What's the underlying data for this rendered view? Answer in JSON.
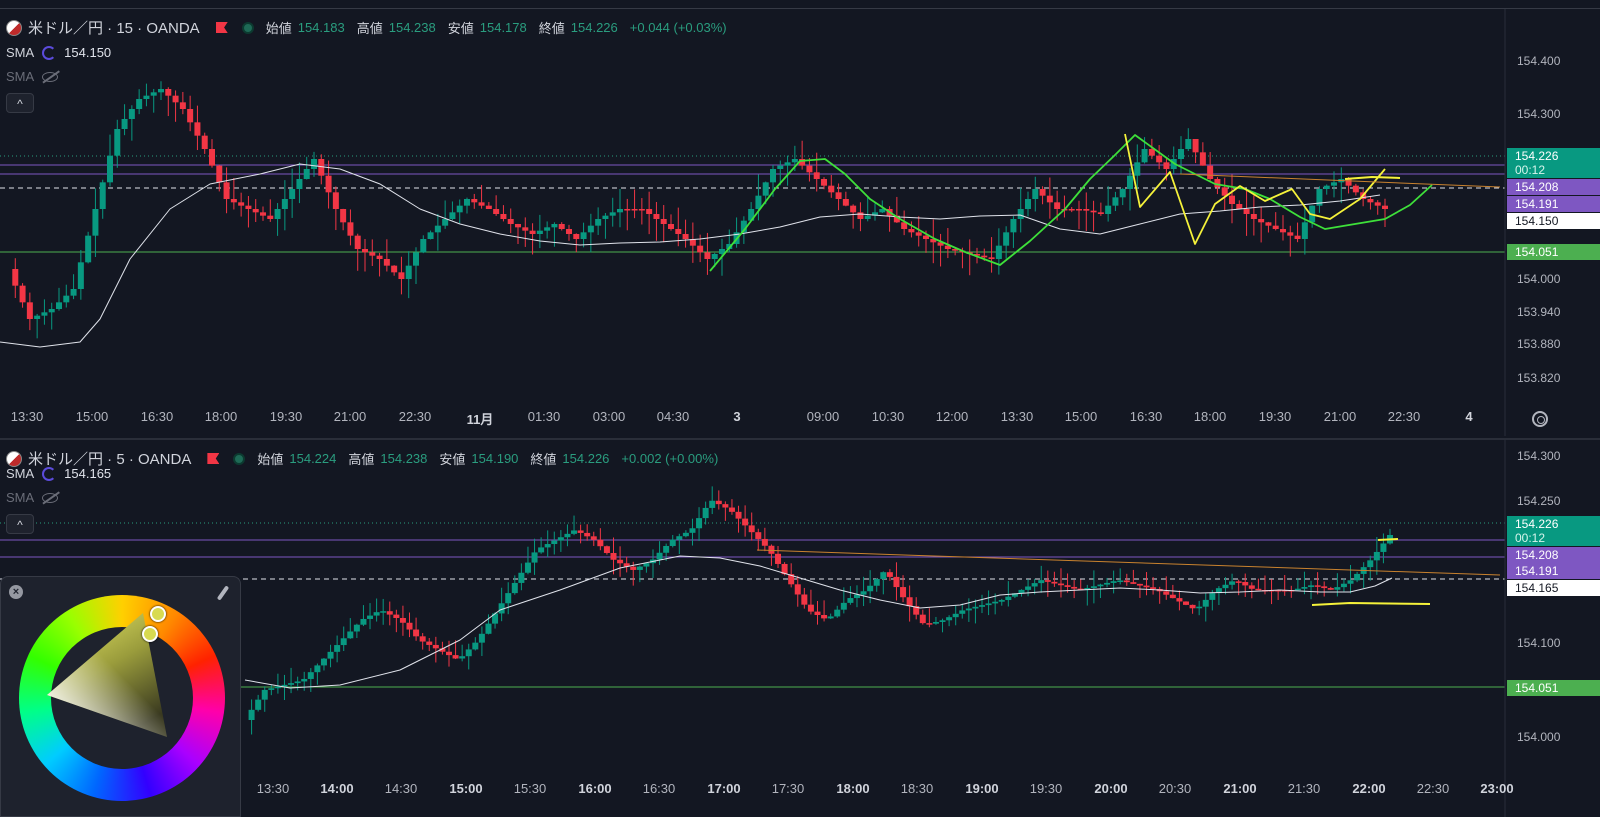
{
  "top_panel": {
    "symbol": "米ドル／円 · 15 · OANDA",
    "ohlc": {
      "open_label": "始値",
      "open": "154.183",
      "high_label": "高値",
      "high": "154.238",
      "low_label": "安値",
      "low": "154.178",
      "close_label": "終値",
      "close": "154.226",
      "change": "+0.044 (+0.03%)"
    },
    "sma1": {
      "name": "SMA",
      "value": "154.150"
    },
    "sma2": {
      "name": "SMA"
    },
    "collapse": "^",
    "y_ticks": [
      "154.400",
      "154.300",
      "154.000",
      "153.940",
      "153.880",
      "153.820"
    ],
    "price_tags": [
      {
        "label": "154.226",
        "sub": "00:12",
        "color": "#089981"
      },
      {
        "label": "154.208",
        "color": "#7e57c2"
      },
      {
        "label": "154.191",
        "color": "#7e57c2"
      },
      {
        "label": "154.150",
        "color": "#ffffff"
      },
      {
        "label": "154.051",
        "color": "#4caf50"
      }
    ],
    "x_ticks": [
      {
        "t": "13:30"
      },
      {
        "t": "15:00"
      },
      {
        "t": "16:30"
      },
      {
        "t": "18:00"
      },
      {
        "t": "19:30"
      },
      {
        "t": "21:00"
      },
      {
        "t": "22:30"
      },
      {
        "t": "11月",
        "bold": true
      },
      {
        "t": "01:30"
      },
      {
        "t": "03:00"
      },
      {
        "t": "04:30"
      },
      {
        "t": "3",
        "bold": true
      },
      {
        "t": "09:00"
      },
      {
        "t": "10:30"
      },
      {
        "t": "12:00"
      },
      {
        "t": "13:30"
      },
      {
        "t": "15:00"
      },
      {
        "t": "16:30"
      },
      {
        "t": "18:00"
      },
      {
        "t": "19:30"
      },
      {
        "t": "21:00"
      },
      {
        "t": "22:30"
      },
      {
        "t": "4",
        "bold": true
      }
    ]
  },
  "bottom_panel": {
    "symbol": "米ドル／円 · 5 · OANDA",
    "ohlc": {
      "open_label": "始値",
      "open": "154.224",
      "high_label": "高値",
      "high": "154.238",
      "low_label": "安値",
      "low": "154.190",
      "close_label": "終値",
      "close": "154.226",
      "change": "+0.002 (+0.00%)"
    },
    "sma1": {
      "name": "SMA",
      "value": "154.165"
    },
    "sma2": {
      "name": "SMA"
    },
    "collapse": "^",
    "y_ticks": [
      "154.300",
      "154.250",
      "154.100",
      "154.000"
    ],
    "price_tags": [
      {
        "label": "154.226",
        "sub": "00:12",
        "color": "#089981"
      },
      {
        "label": "154.208",
        "color": "#7e57c2"
      },
      {
        "label": "154.191",
        "color": "#7e57c2"
      },
      {
        "label": "154.165",
        "color": "#ffffff"
      },
      {
        "label": "154.051",
        "color": "#4caf50"
      }
    ],
    "x_ticks": [
      {
        "t": "13:30"
      },
      {
        "t": "14:00",
        "bold": true
      },
      {
        "t": "14:30"
      },
      {
        "t": "15:00",
        "bold": true
      },
      {
        "t": "15:30"
      },
      {
        "t": "16:00",
        "bold": true
      },
      {
        "t": "16:30"
      },
      {
        "t": "17:00",
        "bold": true
      },
      {
        "t": "17:30"
      },
      {
        "t": "18:00",
        "bold": true
      },
      {
        "t": "18:30"
      },
      {
        "t": "19:00",
        "bold": true
      },
      {
        "t": "19:30"
      },
      {
        "t": "20:00",
        "bold": true
      },
      {
        "t": "20:30"
      },
      {
        "t": "21:00",
        "bold": true
      },
      {
        "t": "21:30"
      },
      {
        "t": "22:00",
        "bold": true
      },
      {
        "t": "22:30"
      },
      {
        "t": "23:00",
        "bold": true
      }
    ]
  },
  "color_picker": {
    "close": "×"
  },
  "colors": {
    "up": "#089981",
    "down": "#f23645",
    "sma": "#e0e3eb",
    "green_drawing": "#3ee03a",
    "yellow_drawing": "#f5f23a",
    "orange_trend": "#c9822e",
    "level_purple": "#7e57c2",
    "level_green": "#4caf50"
  }
}
